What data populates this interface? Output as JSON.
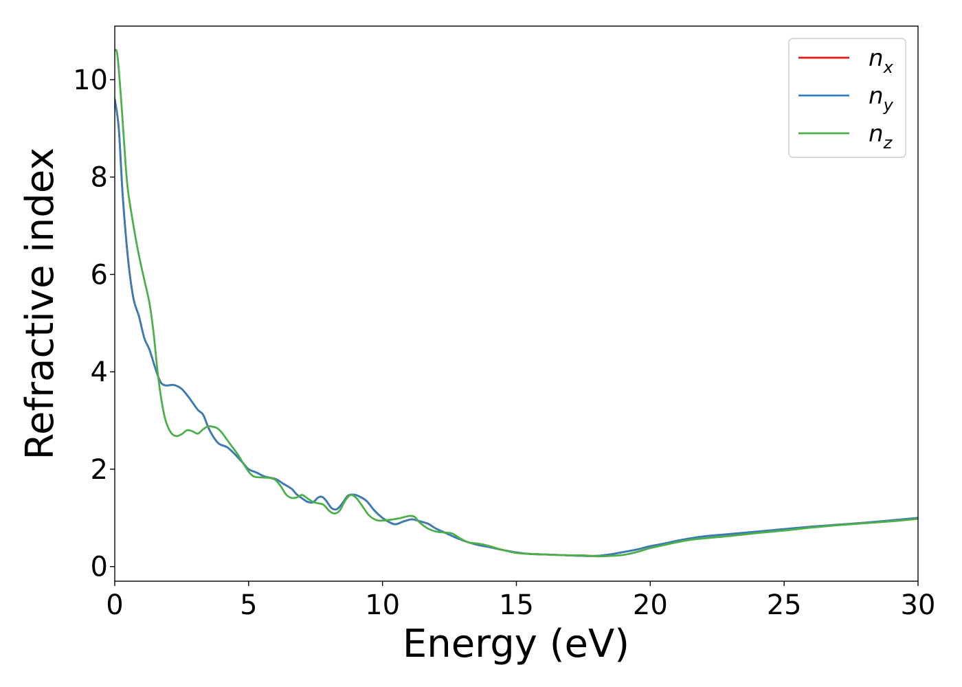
{
  "chart_data": {
    "type": "line",
    "title": "",
    "xlabel": "Energy (eV)",
    "ylabel": "Refractive index",
    "xlim": [
      0,
      30
    ],
    "ylim": [
      -0.3,
      11.1
    ],
    "xticks": [
      0,
      5,
      10,
      15,
      20,
      25,
      30
    ],
    "yticks": [
      0,
      2,
      4,
      6,
      8,
      10
    ],
    "xtick_labels": [
      "0",
      "5",
      "10",
      "15",
      "20",
      "25",
      "30"
    ],
    "ytick_labels": [
      "0",
      "2",
      "4",
      "6",
      "8",
      "10"
    ],
    "grid": false,
    "legend_position": "top-right",
    "series": [
      {
        "name": "n",
        "subscript": "x",
        "color": "#e41a1c",
        "points": [
          [
            0,
            9.6
          ],
          [
            0.15,
            9.0
          ],
          [
            0.3,
            7.6
          ],
          [
            0.5,
            6.3
          ],
          [
            0.7,
            5.5
          ],
          [
            0.9,
            5.15
          ],
          [
            1.1,
            4.7
          ],
          [
            1.3,
            4.45
          ],
          [
            1.5,
            4.1
          ],
          [
            1.7,
            3.8
          ],
          [
            1.9,
            3.72
          ],
          [
            2.2,
            3.73
          ],
          [
            2.5,
            3.65
          ],
          [
            2.8,
            3.45
          ],
          [
            3.1,
            3.22
          ],
          [
            3.3,
            3.12
          ],
          [
            3.5,
            2.85
          ],
          [
            3.7,
            2.65
          ],
          [
            3.9,
            2.52
          ],
          [
            4.2,
            2.45
          ],
          [
            4.5,
            2.3
          ],
          [
            4.8,
            2.12
          ],
          [
            5.0,
            2.0
          ],
          [
            5.3,
            1.93
          ],
          [
            5.6,
            1.85
          ],
          [
            6.0,
            1.8
          ],
          [
            6.3,
            1.7
          ],
          [
            6.6,
            1.6
          ],
          [
            6.8,
            1.48
          ],
          [
            7.0,
            1.4
          ],
          [
            7.2,
            1.33
          ],
          [
            7.4,
            1.32
          ],
          [
            7.6,
            1.42
          ],
          [
            7.75,
            1.43
          ],
          [
            7.9,
            1.35
          ],
          [
            8.1,
            1.2
          ],
          [
            8.3,
            1.18
          ],
          [
            8.5,
            1.3
          ],
          [
            8.7,
            1.45
          ],
          [
            8.9,
            1.48
          ],
          [
            9.1,
            1.45
          ],
          [
            9.4,
            1.35
          ],
          [
            9.7,
            1.15
          ],
          [
            10.0,
            1.0
          ],
          [
            10.3,
            0.9
          ],
          [
            10.5,
            0.87
          ],
          [
            10.8,
            0.93
          ],
          [
            11.1,
            0.97
          ],
          [
            11.4,
            0.93
          ],
          [
            11.7,
            0.88
          ],
          [
            12.0,
            0.78
          ],
          [
            12.4,
            0.68
          ],
          [
            12.8,
            0.58
          ],
          [
            13.2,
            0.5
          ],
          [
            13.6,
            0.44
          ],
          [
            14.0,
            0.4
          ],
          [
            14.5,
            0.34
          ],
          [
            15.0,
            0.29
          ],
          [
            15.5,
            0.26
          ],
          [
            16.0,
            0.25
          ],
          [
            16.5,
            0.24
          ],
          [
            17.0,
            0.23
          ],
          [
            17.5,
            0.22
          ],
          [
            18.0,
            0.22
          ],
          [
            18.5,
            0.25
          ],
          [
            19.0,
            0.3
          ],
          [
            19.5,
            0.35
          ],
          [
            20.0,
            0.42
          ],
          [
            20.5,
            0.47
          ],
          [
            21.0,
            0.53
          ],
          [
            21.5,
            0.58
          ],
          [
            22.0,
            0.62
          ],
          [
            23.0,
            0.67
          ],
          [
            24.0,
            0.72
          ],
          [
            25.0,
            0.77
          ],
          [
            26.0,
            0.82
          ],
          [
            27.0,
            0.86
          ],
          [
            28.0,
            0.9
          ],
          [
            29.0,
            0.95
          ],
          [
            30.0,
            1.0
          ]
        ]
      },
      {
        "name": "n",
        "subscript": "y",
        "color": "#377eb8",
        "points": [
          [
            0,
            9.6
          ],
          [
            0.15,
            9.0
          ],
          [
            0.3,
            7.6
          ],
          [
            0.5,
            6.3
          ],
          [
            0.7,
            5.5
          ],
          [
            0.9,
            5.15
          ],
          [
            1.1,
            4.7
          ],
          [
            1.3,
            4.45
          ],
          [
            1.5,
            4.1
          ],
          [
            1.7,
            3.8
          ],
          [
            1.9,
            3.72
          ],
          [
            2.2,
            3.73
          ],
          [
            2.5,
            3.65
          ],
          [
            2.8,
            3.45
          ],
          [
            3.1,
            3.22
          ],
          [
            3.3,
            3.12
          ],
          [
            3.5,
            2.85
          ],
          [
            3.7,
            2.65
          ],
          [
            3.9,
            2.52
          ],
          [
            4.2,
            2.45
          ],
          [
            4.5,
            2.3
          ],
          [
            4.8,
            2.12
          ],
          [
            5.0,
            2.0
          ],
          [
            5.3,
            1.93
          ],
          [
            5.6,
            1.85
          ],
          [
            6.0,
            1.8
          ],
          [
            6.3,
            1.7
          ],
          [
            6.6,
            1.6
          ],
          [
            6.8,
            1.48
          ],
          [
            7.0,
            1.4
          ],
          [
            7.2,
            1.33
          ],
          [
            7.4,
            1.32
          ],
          [
            7.6,
            1.42
          ],
          [
            7.75,
            1.43
          ],
          [
            7.9,
            1.35
          ],
          [
            8.1,
            1.2
          ],
          [
            8.3,
            1.18
          ],
          [
            8.5,
            1.3
          ],
          [
            8.7,
            1.45
          ],
          [
            8.9,
            1.48
          ],
          [
            9.1,
            1.45
          ],
          [
            9.4,
            1.35
          ],
          [
            9.7,
            1.15
          ],
          [
            10.0,
            1.0
          ],
          [
            10.3,
            0.9
          ],
          [
            10.5,
            0.87
          ],
          [
            10.8,
            0.93
          ],
          [
            11.1,
            0.97
          ],
          [
            11.4,
            0.93
          ],
          [
            11.7,
            0.88
          ],
          [
            12.0,
            0.78
          ],
          [
            12.4,
            0.68
          ],
          [
            12.8,
            0.58
          ],
          [
            13.2,
            0.5
          ],
          [
            13.6,
            0.44
          ],
          [
            14.0,
            0.4
          ],
          [
            14.5,
            0.34
          ],
          [
            15.0,
            0.29
          ],
          [
            15.5,
            0.26
          ],
          [
            16.0,
            0.25
          ],
          [
            16.5,
            0.24
          ],
          [
            17.0,
            0.23
          ],
          [
            17.5,
            0.22
          ],
          [
            18.0,
            0.22
          ],
          [
            18.5,
            0.25
          ],
          [
            19.0,
            0.3
          ],
          [
            19.5,
            0.35
          ],
          [
            20.0,
            0.42
          ],
          [
            20.5,
            0.47
          ],
          [
            21.0,
            0.53
          ],
          [
            21.5,
            0.58
          ],
          [
            22.0,
            0.62
          ],
          [
            23.0,
            0.67
          ],
          [
            24.0,
            0.72
          ],
          [
            25.0,
            0.77
          ],
          [
            26.0,
            0.82
          ],
          [
            27.0,
            0.86
          ],
          [
            28.0,
            0.9
          ],
          [
            29.0,
            0.95
          ],
          [
            30.0,
            1.0
          ]
        ]
      },
      {
        "name": "n",
        "subscript": "z",
        "color": "#4daf4a",
        "points": [
          [
            0,
            10.6
          ],
          [
            0.1,
            10.5
          ],
          [
            0.25,
            9.5
          ],
          [
            0.4,
            8.3
          ],
          [
            0.5,
            7.7
          ],
          [
            0.7,
            7.0
          ],
          [
            0.9,
            6.4
          ],
          [
            1.1,
            5.9
          ],
          [
            1.3,
            5.4
          ],
          [
            1.45,
            4.8
          ],
          [
            1.6,
            4.0
          ],
          [
            1.75,
            3.4
          ],
          [
            1.9,
            3.0
          ],
          [
            2.1,
            2.75
          ],
          [
            2.3,
            2.68
          ],
          [
            2.5,
            2.72
          ],
          [
            2.7,
            2.8
          ],
          [
            2.9,
            2.78
          ],
          [
            3.1,
            2.73
          ],
          [
            3.3,
            2.82
          ],
          [
            3.5,
            2.88
          ],
          [
            3.8,
            2.85
          ],
          [
            4.0,
            2.75
          ],
          [
            4.2,
            2.6
          ],
          [
            4.4,
            2.45
          ],
          [
            4.6,
            2.3
          ],
          [
            4.8,
            2.12
          ],
          [
            5.0,
            1.95
          ],
          [
            5.2,
            1.85
          ],
          [
            5.5,
            1.83
          ],
          [
            5.8,
            1.82
          ],
          [
            6.0,
            1.78
          ],
          [
            6.2,
            1.65
          ],
          [
            6.4,
            1.48
          ],
          [
            6.6,
            1.41
          ],
          [
            6.8,
            1.42
          ],
          [
            7.0,
            1.47
          ],
          [
            7.2,
            1.4
          ],
          [
            7.4,
            1.33
          ],
          [
            7.6,
            1.3
          ],
          [
            7.8,
            1.27
          ],
          [
            8.0,
            1.15
          ],
          [
            8.2,
            1.09
          ],
          [
            8.4,
            1.15
          ],
          [
            8.6,
            1.35
          ],
          [
            8.8,
            1.47
          ],
          [
            9.0,
            1.42
          ],
          [
            9.2,
            1.28
          ],
          [
            9.5,
            1.05
          ],
          [
            9.8,
            0.95
          ],
          [
            10.1,
            0.95
          ],
          [
            10.4,
            0.97
          ],
          [
            10.7,
            1.0
          ],
          [
            11.0,
            1.04
          ],
          [
            11.2,
            1.02
          ],
          [
            11.4,
            0.9
          ],
          [
            11.7,
            0.78
          ],
          [
            12.0,
            0.72
          ],
          [
            12.3,
            0.7
          ],
          [
            12.6,
            0.68
          ],
          [
            12.9,
            0.58
          ],
          [
            13.2,
            0.5
          ],
          [
            13.6,
            0.47
          ],
          [
            14.0,
            0.42
          ],
          [
            14.5,
            0.34
          ],
          [
            15.0,
            0.28
          ],
          [
            15.5,
            0.26
          ],
          [
            16.0,
            0.25
          ],
          [
            16.5,
            0.24
          ],
          [
            17.0,
            0.23
          ],
          [
            17.5,
            0.23
          ],
          [
            18.0,
            0.21
          ],
          [
            18.5,
            0.22
          ],
          [
            19.0,
            0.24
          ],
          [
            19.5,
            0.3
          ],
          [
            20.0,
            0.38
          ],
          [
            20.5,
            0.44
          ],
          [
            21.0,
            0.5
          ],
          [
            21.5,
            0.55
          ],
          [
            22.0,
            0.58
          ],
          [
            23.0,
            0.63
          ],
          [
            24.0,
            0.69
          ],
          [
            25.0,
            0.74
          ],
          [
            26.0,
            0.8
          ],
          [
            27.0,
            0.85
          ],
          [
            28.0,
            0.89
          ],
          [
            29.0,
            0.93
          ],
          [
            30.0,
            0.98
          ]
        ]
      }
    ]
  }
}
